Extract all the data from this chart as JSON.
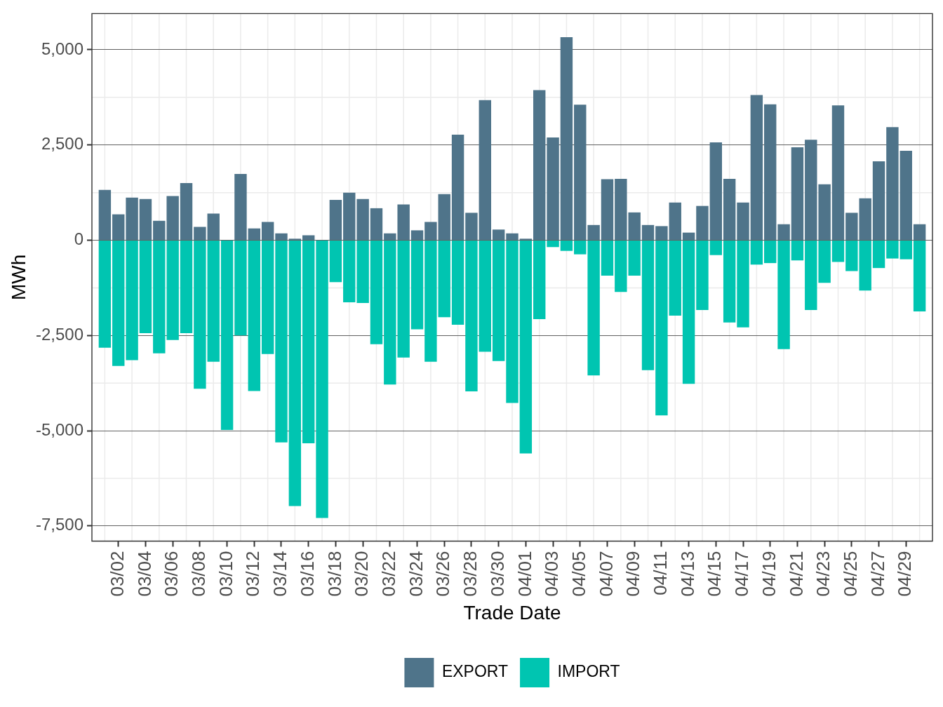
{
  "chart_data": {
    "type": "bar",
    "xlabel": "Trade Date",
    "ylabel": "MWh",
    "categories": [
      null,
      "03/02",
      null,
      "03/04",
      null,
      "03/06",
      null,
      "03/08",
      null,
      "03/10",
      null,
      "03/12",
      null,
      "03/14",
      null,
      "03/16",
      null,
      "03/18",
      null,
      "03/20",
      null,
      "03/22",
      null,
      "03/24",
      null,
      "03/26",
      null,
      "03/28",
      null,
      "03/30",
      null,
      "04/01",
      null,
      "04/03",
      null,
      "04/05",
      null,
      "04/07",
      null,
      "04/09",
      null,
      "04/11",
      null,
      "04/13",
      null,
      "04/15",
      null,
      "04/17",
      null,
      "04/19",
      null,
      "04/21",
      null,
      "04/23",
      null,
      "04/25",
      null,
      "04/27",
      null,
      "04/29",
      null
    ],
    "series": [
      {
        "name": "EXPORT",
        "color": "#4f748a",
        "values": [
          1320,
          680,
          1120,
          1080,
          510,
          1160,
          1500,
          350,
          700,
          null,
          1740,
          310,
          480,
          180,
          40,
          130,
          null,
          1060,
          1250,
          1080,
          840,
          180,
          940,
          260,
          480,
          1210,
          2770,
          720,
          3680,
          280,
          180,
          40,
          3940,
          2700,
          5330,
          3560,
          400,
          1600,
          1610,
          730,
          400,
          370,
          990,
          200,
          900,
          2570,
          1610,
          990,
          3810,
          3570,
          420,
          2440,
          2640,
          1470,
          3540,
          720,
          1100,
          2070,
          2970,
          2350,
          420
        ]
      },
      {
        "name": "IMPORT",
        "color": "#00c5b1",
        "values": [
          -2820,
          -3300,
          -3150,
          -2440,
          -2970,
          -2620,
          -2440,
          -3900,
          -3190,
          -4980,
          -2500,
          -3960,
          -2990,
          -5310,
          -6980,
          -5330,
          -7290,
          -1100,
          -1630,
          -1650,
          -2730,
          -3790,
          -3080,
          -2340,
          -3190,
          -2020,
          -2220,
          -3970,
          -2930,
          -3170,
          -4270,
          -5600,
          -2070,
          -180,
          -280,
          -370,
          -3550,
          -930,
          -1360,
          -930,
          -3410,
          -4600,
          -1980,
          -3770,
          -1830,
          -390,
          -2160,
          -2290,
          -640,
          -600,
          -2860,
          -530,
          -1830,
          -1120,
          -570,
          -810,
          -1320,
          -730,
          -480,
          -500,
          -1870
        ]
      }
    ],
    "stacked": true,
    "ylim": [
      -7900,
      5950
    ],
    "yticks": [
      {
        "value": -7500,
        "label": "-7,500"
      },
      {
        "value": -5000,
        "label": "-5,000"
      },
      {
        "value": -2500,
        "label": "-2,500"
      },
      0,
      {
        "value": 2500,
        "label": "2,500"
      },
      {
        "value": 5000,
        "label": "5,000"
      }
    ],
    "grid": true,
    "legend": "bottom"
  }
}
